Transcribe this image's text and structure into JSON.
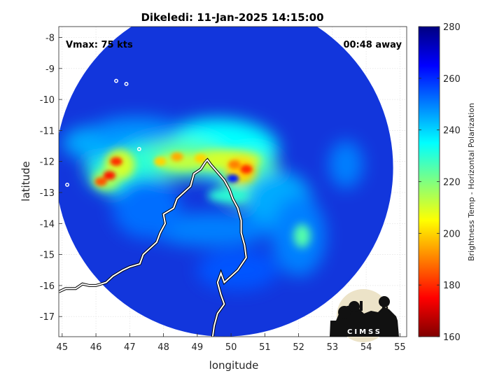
{
  "chart_data": {
    "type": "heatmap",
    "title": "Dikeledi: 11-Jan-2025 14:15:00",
    "xlabel": "longitude",
    "ylabel": "latitude",
    "xlim": [
      44.9,
      55.2
    ],
    "ylim": [
      -17.65,
      -7.65
    ],
    "xticks": [
      45,
      46,
      47,
      48,
      49,
      50,
      51,
      52,
      53,
      54,
      55
    ],
    "yticks": [
      -8,
      -9,
      -10,
      -11,
      -12,
      -13,
      -14,
      -15,
      -16,
      -17
    ],
    "grid": true,
    "annotations": {
      "vmax": "Vmax: 75 kts",
      "time_away": "00:48 away"
    },
    "colorbar": {
      "label": "Brightness Temp - Horizontal Polarization",
      "range": [
        160,
        280
      ],
      "ticks": [
        160,
        180,
        200,
        220,
        240,
        260,
        280
      ]
    },
    "swath": {
      "center": [
        49.8,
        -12.2
      ],
      "radius_deg": 5.1
    },
    "cold_features": [
      {
        "lon": 50.45,
        "lat": -12.25,
        "value": 180
      },
      {
        "lon": 50.1,
        "lat": -12.1,
        "value": 190
      },
      {
        "lon": 46.6,
        "lat": -12.0,
        "value": 180
      },
      {
        "lon": 46.4,
        "lat": -12.45,
        "value": 178
      },
      {
        "lon": 46.15,
        "lat": -12.65,
        "value": 185
      },
      {
        "lon": 48.4,
        "lat": -11.85,
        "value": 195
      },
      {
        "lon": 47.9,
        "lat": -12.0,
        "value": 200
      },
      {
        "lon": 49.1,
        "lat": -11.9,
        "value": 200
      }
    ],
    "eye": {
      "lon": 50.05,
      "lat": -12.55
    },
    "logo_text": "CIMSS"
  },
  "colors": {
    "colormap": [
      "#7f0000",
      "#ff0000",
      "#ffff00",
      "#00ffff",
      "#0000ff",
      "#00008f"
    ],
    "background_ocean": "#1030d8"
  }
}
